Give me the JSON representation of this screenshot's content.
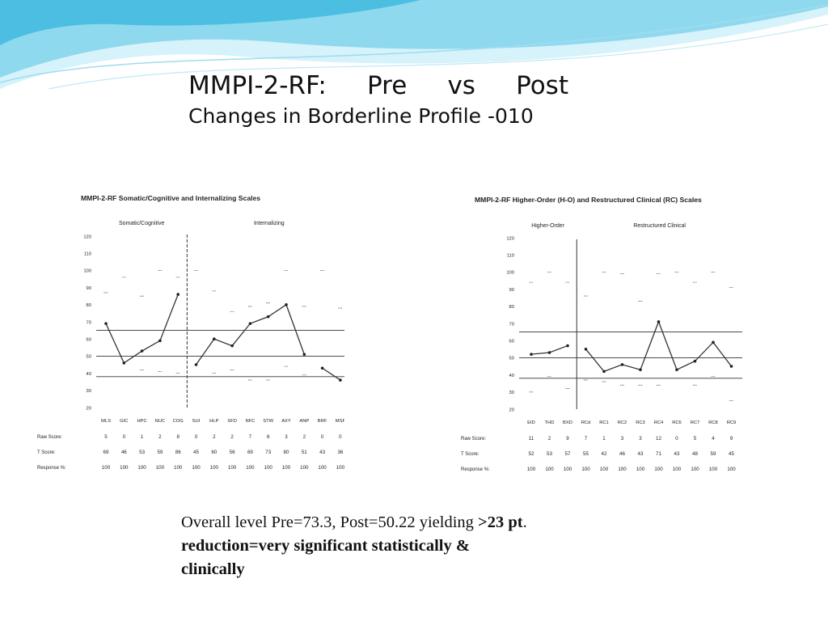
{
  "slide": {
    "title_parts": [
      "MMPI-2-RF:",
      "Pre",
      "vs",
      "Post"
    ],
    "subtitle": "Changes in Borderline Profile -010",
    "summary": {
      "line1_text": "Overall level Pre=73.3, Post=50.22 yielding ",
      "line1_bold": ">23 pt",
      "line1_end": ".",
      "line2_bold": "reduction=very  significant statistically &",
      "line3_bold": "clinically"
    },
    "colors": {
      "wave_light": "#c8eef8",
      "wave_mid": "#7fd3ec",
      "wave_dark": "#2fb4dc",
      "line": "#333333"
    }
  },
  "chart_data": [
    {
      "type": "line",
      "title": "MMPI-2-RF Somatic/Cognitive and Internalizing Scales",
      "groups": [
        {
          "label": "Somatic/Cognitive",
          "categories": [
            "MLS",
            "GIC",
            "HPC",
            "NUC",
            "COG"
          ]
        },
        {
          "label": "Internalizing",
          "categories": [
            "SUI",
            "HLP",
            "SFD",
            "NFC",
            "STW",
            "AXY",
            "ANP",
            "BRF",
            "MSF"
          ]
        }
      ],
      "categories": [
        "MLS",
        "GIC",
        "HPC",
        "NUC",
        "COG",
        "SUI",
        "HLP",
        "SFD",
        "NFC",
        "STW",
        "AXY",
        "ANP",
        "BRF",
        "MSF"
      ],
      "segments": [
        [
          0,
          4
        ],
        [
          5,
          11
        ],
        [
          12,
          13
        ]
      ],
      "divider_after_index": 4,
      "y_ticks": [
        20,
        30,
        40,
        50,
        60,
        70,
        80,
        90,
        100,
        110,
        120
      ],
      "ylim": [
        20,
        120
      ],
      "reference_lines": [
        65,
        50,
        38
      ],
      "upper_marks": [
        87,
        96,
        85,
        100,
        96,
        100,
        88,
        76,
        79,
        81,
        100,
        79,
        100,
        78
      ],
      "lower_marks": [
        null,
        null,
        42,
        41,
        40,
        null,
        40,
        42,
        36,
        36,
        44,
        39,
        null,
        null
      ],
      "series": [
        {
          "values": [
            69,
            46,
            53,
            59,
            86,
            45,
            60,
            56,
            69,
            73,
            80,
            51,
            43,
            36
          ]
        }
      ],
      "table": {
        "rows": [
          {
            "label": "Raw Score:",
            "values": [
              "5",
              "0",
              "1",
              "2",
              "8",
              "0",
              "2",
              "2",
              "7",
              "6",
              "3",
              "2",
              "0",
              "0"
            ]
          },
          {
            "label": "T Score:",
            "values": [
              "69",
              "46",
              "53",
              "59",
              "86",
              "45",
              "60",
              "56",
              "69",
              "73",
              "80",
              "51",
              "43",
              "36"
            ]
          },
          {
            "label": "Response %:",
            "values": [
              "100",
              "100",
              "100",
              "100",
              "100",
              "100",
              "100",
              "100",
              "100",
              "100",
              "100",
              "100",
              "100",
              "100"
            ]
          }
        ]
      }
    },
    {
      "type": "line",
      "title": "MMPI-2-RF Higher-Order (H-O) and Restructured Clinical (RC) Scales",
      "groups": [
        {
          "label": "Higher-Order",
          "categories": [
            "EID",
            "THD",
            "BXD"
          ]
        },
        {
          "label": "Restructured Clinical",
          "categories": [
            "RCd",
            "RC1",
            "RC2",
            "RC3",
            "RC4",
            "RC6",
            "RC7",
            "RC8",
            "RC9"
          ]
        }
      ],
      "categories": [
        "EID",
        "THD",
        "BXD",
        "RCd",
        "RC1",
        "RC2",
        "RC3",
        "RC4",
        "RC6",
        "RC7",
        "RC8",
        "RC9"
      ],
      "segments": [
        [
          0,
          2
        ],
        [
          3,
          11
        ]
      ],
      "divider_after_index": 2,
      "y_ticks": [
        20,
        30,
        40,
        50,
        60,
        70,
        80,
        90,
        100,
        110,
        120
      ],
      "ylim": [
        20,
        120
      ],
      "reference_lines": [
        65,
        50,
        38
      ],
      "upper_marks": [
        94,
        100,
        94,
        86,
        100,
        99,
        83,
        99,
        100,
        94,
        100,
        91
      ],
      "lower_marks": [
        30,
        39,
        32,
        37,
        36,
        34,
        34,
        34,
        null,
        34,
        39,
        25
      ],
      "series": [
        {
          "values": [
            52,
            53,
            57,
            55,
            42,
            46,
            43,
            71,
            43,
            48,
            59,
            45
          ]
        }
      ],
      "table": {
        "rows": [
          {
            "label": "Raw Score:",
            "values": [
              "11",
              "2",
              "9",
              "7",
              "1",
              "3",
              "3",
              "12",
              "0",
              "5",
              "4",
              "9"
            ]
          },
          {
            "label": "T Score:",
            "values": [
              "52",
              "53",
              "57",
              "55",
              "42",
              "46",
              "43",
              "71",
              "43",
              "48",
              "59",
              "45"
            ]
          },
          {
            "label": "Response %:",
            "values": [
              "100",
              "100",
              "100",
              "100",
              "100",
              "100",
              "100",
              "100",
              "100",
              "100",
              "100",
              "100"
            ]
          }
        ]
      }
    }
  ]
}
